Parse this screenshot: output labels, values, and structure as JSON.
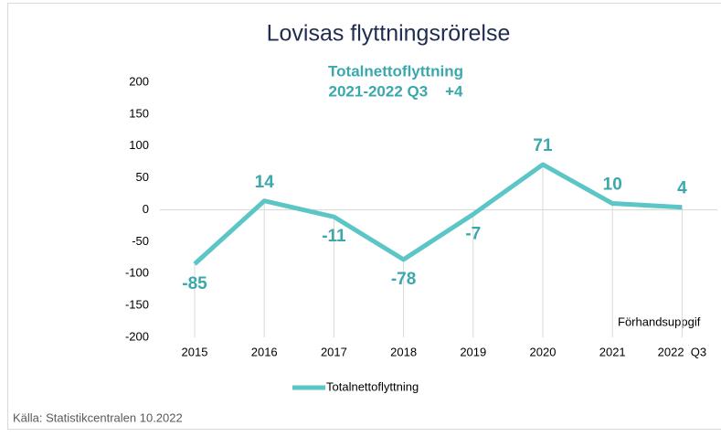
{
  "chart_data": {
    "type": "line",
    "title": "Lovisas flyttningsrörelse",
    "subtitle": [
      "Totalnettoflyttning",
      "2021-2022 Q3    +4"
    ],
    "categories": [
      "2015",
      "2016",
      "2017",
      "2018",
      "2019",
      "2020",
      "2021",
      "2022  Q3"
    ],
    "series": [
      {
        "name": "Totalnettoflyttning",
        "color": "#5cc6c6",
        "values": [
          -85,
          14,
          -11,
          -78,
          -7,
          71,
          10,
          4
        ]
      }
    ],
    "ylim": [
      -200,
      200
    ],
    "yticks": [
      -200,
      -150,
      -100,
      -50,
      0,
      50,
      100,
      150,
      200
    ],
    "annotation": "Förhandsuppgif",
    "source": "Källa: Statistikcentralen 10.2022",
    "label_color": "#3aa8ac"
  }
}
